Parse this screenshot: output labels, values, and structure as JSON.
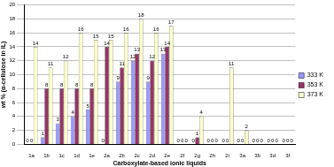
{
  "chart_data": {
    "type": "bar",
    "x_label": "Carboxylate-based ionic liquids",
    "y_label": "wt % (α-cellulose in IL)",
    "categories": [
      "1a",
      "1b",
      "1c",
      "1d",
      "1e",
      "2a",
      "2b",
      "2c",
      "2d",
      "2e",
      "2f",
      "2g",
      "2h",
      "2i",
      "3a",
      "3b",
      "3d",
      "3f"
    ],
    "series": [
      {
        "name": "333 K",
        "color": "#9999ff",
        "values": [
          0,
          1,
          3,
          4,
          5,
          0,
          9,
          12,
          9,
          13,
          0,
          0,
          0,
          0,
          0,
          0,
          0,
          0
        ]
      },
      {
        "name": "353 K",
        "color": "#993366",
        "values": [
          0,
          8,
          8,
          8,
          8,
          14,
          11,
          13,
          12,
          14,
          0,
          1,
          0,
          0,
          0,
          0,
          0,
          0
        ]
      },
      {
        "name": "373 K",
        "color": "#ffffcc",
        "values": [
          14,
          11,
          12,
          16,
          15,
          15,
          16,
          18,
          16,
          17,
          0,
          4,
          0,
          11,
          2,
          0,
          0,
          0
        ]
      }
    ],
    "ylim": [
      0,
      20
    ],
    "yticks": [
      0,
      2,
      4,
      6,
      8,
      10,
      12,
      14,
      16,
      18,
      20
    ],
    "grid": true,
    "legend": "right",
    "data_labels": true
  }
}
